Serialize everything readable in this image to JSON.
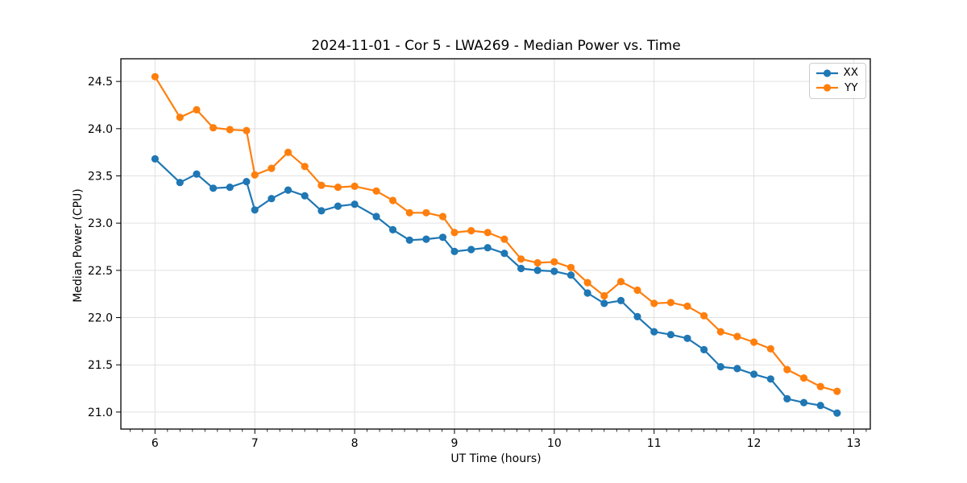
{
  "chart_data": {
    "type": "line",
    "title": "2024-11-01 - Cor 5 - LWA269 - Median Power vs. Time",
    "xlabel": "UT Time (hours)",
    "ylabel": "Median Power (CPU)",
    "xlim": [
      5.658,
      13.166
    ],
    "ylim": [
      20.82,
      24.74
    ],
    "x_ticks": [
      6,
      7,
      8,
      9,
      10,
      11,
      12,
      13
    ],
    "x_tick_labels": [
      "6",
      "7",
      "8",
      "9",
      "10",
      "11",
      "12",
      "13"
    ],
    "y_ticks": [
      21.0,
      21.5,
      22.0,
      22.5,
      23.0,
      23.5,
      24.0,
      24.5
    ],
    "y_tick_labels": [
      "21.0",
      "21.5",
      "22.0",
      "22.5",
      "23.0",
      "23.5",
      "24.0",
      "24.5"
    ],
    "x_minor_tick_step": 0.125,
    "grid": true,
    "grid_color": "#e0e0e0",
    "legend_position": "upper right",
    "x": [
      6.0,
      6.25,
      6.417,
      6.583,
      6.75,
      6.917,
      7.0,
      7.167,
      7.333,
      7.5,
      7.667,
      7.833,
      8.0,
      8.217,
      8.383,
      8.55,
      8.717,
      8.883,
      9.0,
      9.167,
      9.333,
      9.5,
      9.667,
      9.833,
      10.0,
      10.167,
      10.333,
      10.5,
      10.667,
      10.833,
      11.0,
      11.167,
      11.333,
      11.5,
      11.667,
      11.833,
      12.0,
      12.167,
      12.333,
      12.5,
      12.667,
      12.833
    ],
    "series": [
      {
        "name": "XX",
        "color": "#1f77b4",
        "values": [
          23.68,
          23.43,
          23.52,
          23.37,
          23.38,
          23.44,
          23.14,
          23.26,
          23.35,
          23.29,
          23.13,
          23.18,
          23.2,
          23.07,
          22.93,
          22.82,
          22.83,
          22.85,
          22.7,
          22.72,
          22.74,
          22.68,
          22.52,
          22.5,
          22.49,
          22.45,
          22.26,
          22.15,
          22.18,
          22.01,
          21.85,
          21.82,
          21.78,
          21.66,
          21.48,
          21.46,
          21.4,
          21.35,
          21.14,
          21.1,
          21.07,
          20.99
        ]
      },
      {
        "name": "YY",
        "color": "#ff7f0e",
        "values": [
          24.55,
          24.12,
          24.2,
          24.01,
          23.99,
          23.98,
          23.51,
          23.58,
          23.75,
          23.6,
          23.4,
          23.38,
          23.39,
          23.34,
          23.24,
          23.11,
          23.11,
          23.07,
          22.9,
          22.92,
          22.9,
          22.83,
          22.62,
          22.58,
          22.59,
          22.53,
          22.37,
          22.23,
          22.38,
          22.29,
          22.15,
          22.16,
          22.12,
          22.02,
          21.85,
          21.8,
          21.74,
          21.67,
          21.45,
          21.36,
          21.27,
          21.22
        ]
      }
    ]
  }
}
